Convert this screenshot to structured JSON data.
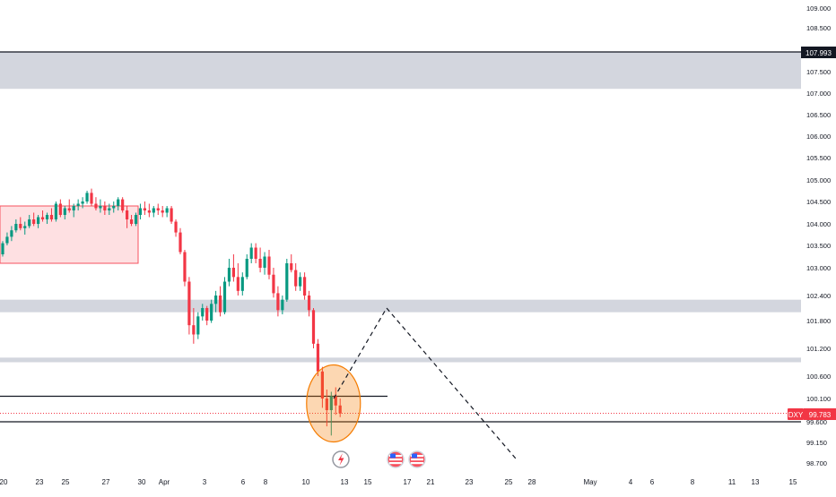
{
  "chart_data": {
    "type": "candlestick",
    "title": "",
    "xlabel": "",
    "ylabel": "",
    "grid": false,
    "symbol": "DXY",
    "last_price": 99.783,
    "ylim": [
      98.6,
      109.2
    ],
    "y_ticks": [
      "109.000",
      "108.500",
      "107.500",
      "107.000",
      "106.500",
      "106.000",
      "105.500",
      "105.000",
      "104.500",
      "104.000",
      "103.500",
      "103.000",
      "102.400",
      "101.800",
      "101.200",
      "100.600",
      "100.100",
      "99.600",
      "99.150",
      "98.700"
    ],
    "y_tick_values": [
      109.0,
      108.5,
      107.5,
      107.0,
      106.5,
      106.0,
      105.5,
      105.0,
      104.5,
      104.0,
      103.5,
      103.0,
      102.4,
      101.8,
      101.2,
      100.6,
      100.1,
      99.6,
      99.15,
      98.7
    ],
    "x_ticks": [
      "20",
      "23",
      "25",
      "27",
      "30",
      "Apr",
      "3",
      "6",
      "8",
      "10",
      "13",
      "15",
      "17",
      "21",
      "23",
      "25",
      "28",
      "May",
      "4",
      "6",
      "8",
      "11",
      "13",
      "15"
    ],
    "marked_levels": [
      107.993,
      100.15,
      99.6
    ],
    "zones": [
      {
        "from": 107.1,
        "to": 108.0,
        "color": "#d1d4dc"
      },
      {
        "from": 102.0,
        "to": 102.3,
        "color": "#d1d4dc"
      },
      {
        "from": 100.9,
        "to": 101.0,
        "color": "#d1d4dc"
      }
    ],
    "box": {
      "from": 103.1,
      "to": 104.4,
      "color": "#f7525f"
    },
    "projection": [
      [
        100.1,
        102.1
      ],
      [
        102.1,
        98.75
      ]
    ],
    "candles": [
      {
        "o": 103.3,
        "h": 103.6,
        "l": 103.25,
        "c": 103.55
      },
      {
        "o": 103.55,
        "h": 103.8,
        "l": 103.5,
        "c": 103.7
      },
      {
        "o": 103.7,
        "h": 103.95,
        "l": 103.6,
        "c": 103.85
      },
      {
        "o": 103.85,
        "h": 104.1,
        "l": 103.8,
        "c": 104.0
      },
      {
        "o": 104.0,
        "h": 104.15,
        "l": 103.85,
        "c": 103.9
      },
      {
        "o": 103.9,
        "h": 104.05,
        "l": 103.75,
        "c": 103.95
      },
      {
        "o": 103.95,
        "h": 104.2,
        "l": 103.9,
        "c": 104.1
      },
      {
        "o": 104.1,
        "h": 104.25,
        "l": 103.95,
        "c": 104.0
      },
      {
        "o": 104.0,
        "h": 104.2,
        "l": 103.9,
        "c": 104.15
      },
      {
        "o": 104.15,
        "h": 104.3,
        "l": 104.05,
        "c": 104.1
      },
      {
        "o": 104.1,
        "h": 104.25,
        "l": 104.0,
        "c": 104.2
      },
      {
        "o": 104.2,
        "h": 104.35,
        "l": 104.05,
        "c": 104.1
      },
      {
        "o": 104.1,
        "h": 104.5,
        "l": 104.05,
        "c": 104.45
      },
      {
        "o": 104.45,
        "h": 104.55,
        "l": 104.15,
        "c": 104.2
      },
      {
        "o": 104.2,
        "h": 104.4,
        "l": 104.1,
        "c": 104.35
      },
      {
        "o": 104.35,
        "h": 104.55,
        "l": 104.25,
        "c": 104.3
      },
      {
        "o": 104.3,
        "h": 104.45,
        "l": 104.15,
        "c": 104.4
      },
      {
        "o": 104.4,
        "h": 104.55,
        "l": 104.3,
        "c": 104.45
      },
      {
        "o": 104.45,
        "h": 104.6,
        "l": 104.35,
        "c": 104.5
      },
      {
        "o": 104.5,
        "h": 104.75,
        "l": 104.45,
        "c": 104.7
      },
      {
        "o": 104.7,
        "h": 104.8,
        "l": 104.4,
        "c": 104.45
      },
      {
        "o": 104.45,
        "h": 104.6,
        "l": 104.3,
        "c": 104.35
      },
      {
        "o": 104.35,
        "h": 104.55,
        "l": 104.25,
        "c": 104.4
      },
      {
        "o": 104.4,
        "h": 104.5,
        "l": 104.2,
        "c": 104.3
      },
      {
        "o": 104.3,
        "h": 104.45,
        "l": 104.2,
        "c": 104.35
      },
      {
        "o": 104.35,
        "h": 104.5,
        "l": 104.25,
        "c": 104.4
      },
      {
        "o": 104.4,
        "h": 104.6,
        "l": 104.3,
        "c": 104.55
      },
      {
        "o": 104.55,
        "h": 104.6,
        "l": 104.25,
        "c": 104.3
      },
      {
        "o": 104.3,
        "h": 104.4,
        "l": 103.9,
        "c": 104.1
      },
      {
        "o": 104.1,
        "h": 104.2,
        "l": 103.95,
        "c": 104.0
      },
      {
        "o": 104.0,
        "h": 104.25,
        "l": 103.95,
        "c": 104.2
      },
      {
        "o": 104.2,
        "h": 104.45,
        "l": 104.1,
        "c": 104.35
      },
      {
        "o": 104.35,
        "h": 104.5,
        "l": 104.2,
        "c": 104.3
      },
      {
        "o": 104.3,
        "h": 104.45,
        "l": 104.15,
        "c": 104.25
      },
      {
        "o": 104.25,
        "h": 104.4,
        "l": 104.15,
        "c": 104.35
      },
      {
        "o": 104.35,
        "h": 104.45,
        "l": 104.2,
        "c": 104.3
      },
      {
        "o": 104.3,
        "h": 104.4,
        "l": 104.15,
        "c": 104.25
      },
      {
        "o": 104.25,
        "h": 104.4,
        "l": 104.15,
        "c": 104.35
      },
      {
        "o": 104.35,
        "h": 104.4,
        "l": 104.0,
        "c": 104.05
      },
      {
        "o": 104.05,
        "h": 104.1,
        "l": 103.7,
        "c": 103.8
      },
      {
        "o": 103.8,
        "h": 103.9,
        "l": 103.3,
        "c": 103.35
      },
      {
        "o": 103.35,
        "h": 103.4,
        "l": 102.6,
        "c": 102.7
      },
      {
        "o": 102.7,
        "h": 102.8,
        "l": 101.5,
        "c": 101.7
      },
      {
        "o": 101.7,
        "h": 102.1,
        "l": 101.3,
        "c": 101.5
      },
      {
        "o": 101.5,
        "h": 102.0,
        "l": 101.4,
        "c": 101.9
      },
      {
        "o": 101.9,
        "h": 102.2,
        "l": 101.8,
        "c": 102.1
      },
      {
        "o": 102.1,
        "h": 102.15,
        "l": 101.7,
        "c": 101.8
      },
      {
        "o": 101.8,
        "h": 102.3,
        "l": 101.75,
        "c": 102.2
      },
      {
        "o": 102.2,
        "h": 102.5,
        "l": 102.0,
        "c": 102.4
      },
      {
        "o": 102.4,
        "h": 102.6,
        "l": 101.9,
        "c": 102.0
      },
      {
        "o": 102.0,
        "h": 102.8,
        "l": 101.95,
        "c": 102.7
      },
      {
        "o": 102.7,
        "h": 103.2,
        "l": 102.6,
        "c": 103.0
      },
      {
        "o": 103.0,
        "h": 103.3,
        "l": 102.7,
        "c": 102.8
      },
      {
        "o": 102.8,
        "h": 103.1,
        "l": 102.4,
        "c": 102.5
      },
      {
        "o": 102.5,
        "h": 102.9,
        "l": 102.4,
        "c": 102.8
      },
      {
        "o": 102.8,
        "h": 103.3,
        "l": 102.75,
        "c": 103.2
      },
      {
        "o": 103.2,
        "h": 103.55,
        "l": 103.1,
        "c": 103.45
      },
      {
        "o": 103.45,
        "h": 103.55,
        "l": 103.1,
        "c": 103.2
      },
      {
        "o": 103.2,
        "h": 103.45,
        "l": 102.9,
        "c": 103.0
      },
      {
        "o": 103.0,
        "h": 103.35,
        "l": 102.85,
        "c": 103.25
      },
      {
        "o": 103.25,
        "h": 103.4,
        "l": 102.75,
        "c": 102.85
      },
      {
        "o": 102.85,
        "h": 103.0,
        "l": 102.35,
        "c": 102.45
      },
      {
        "o": 102.45,
        "h": 102.6,
        "l": 101.9,
        "c": 102.05
      },
      {
        "o": 102.05,
        "h": 102.4,
        "l": 101.95,
        "c": 102.3
      },
      {
        "o": 102.3,
        "h": 103.2,
        "l": 102.25,
        "c": 103.1
      },
      {
        "o": 103.1,
        "h": 103.3,
        "l": 102.9,
        "c": 102.95
      },
      {
        "o": 102.95,
        "h": 103.1,
        "l": 102.5,
        "c": 102.6
      },
      {
        "o": 102.6,
        "h": 102.9,
        "l": 102.5,
        "c": 102.8
      },
      {
        "o": 102.8,
        "h": 102.9,
        "l": 102.3,
        "c": 102.4
      },
      {
        "o": 102.4,
        "h": 102.5,
        "l": 101.9,
        "c": 102.05
      },
      {
        "o": 102.05,
        "h": 102.1,
        "l": 101.2,
        "c": 101.3
      },
      {
        "o": 101.3,
        "h": 101.4,
        "l": 100.6,
        "c": 100.7
      },
      {
        "o": 100.7,
        "h": 100.8,
        "l": 99.9,
        "c": 100.1
      },
      {
        "o": 100.1,
        "h": 100.3,
        "l": 99.5,
        "c": 99.85
      },
      {
        "o": 99.85,
        "h": 100.25,
        "l": 99.3,
        "c": 100.15
      },
      {
        "o": 100.15,
        "h": 100.35,
        "l": 99.75,
        "c": 99.95
      },
      {
        "o": 99.95,
        "h": 100.1,
        "l": 99.7,
        "c": 99.78
      }
    ]
  },
  "price_label": {
    "ticker": "DXY",
    "value": "99.783"
  },
  "colors": {
    "up": "#089981",
    "down": "#f23645",
    "zone": "#d1d4dc",
    "box": "#f7525f",
    "highlight": "#f57c00"
  },
  "icons": [
    "flash-icon",
    "us-flag-icon",
    "us-flag-icon"
  ]
}
